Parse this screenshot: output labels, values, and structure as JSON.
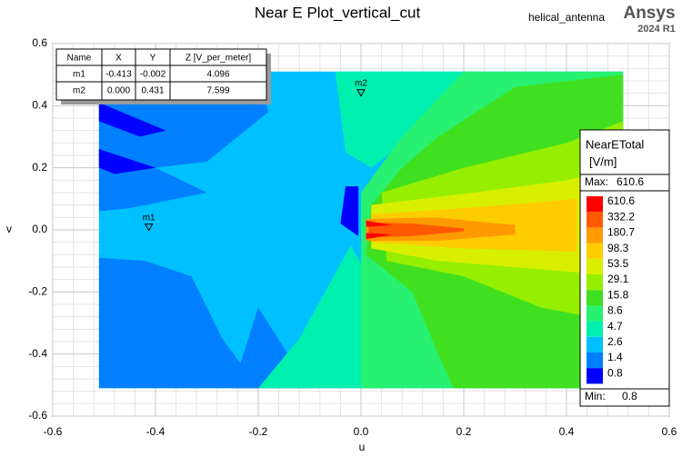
{
  "chart_data": {
    "type": "contour",
    "title": "Near E Plot_vertical_cut",
    "project": "helical_antenna",
    "brand": "Ansys",
    "version": "2024 R1",
    "x_label": "u",
    "y_label": "v",
    "xlim": [
      -0.6,
      0.6
    ],
    "ylim": [
      -0.6,
      0.6
    ],
    "xticks": [
      -0.6,
      -0.4,
      -0.2,
      {
        "value": 0,
        "label": "0.0"
      },
      0.2,
      0.4,
      0.6
    ],
    "yticks": [
      -0.6,
      -0.4,
      -0.2,
      {
        "value": 0,
        "label": "0.0"
      },
      0.2,
      0.4,
      0.6
    ],
    "grid": true,
    "legend": {
      "title": "NearETotal",
      "unit": "[V/m]",
      "max_label": "Max:",
      "max": 610.6,
      "min_label": "Min:",
      "min": 0.8,
      "levels": [
        610.6,
        332.2,
        180.7,
        98.3,
        53.5,
        29.1,
        15.8,
        8.6,
        4.7,
        2.6,
        1.4,
        0.8
      ],
      "colors": [
        "#ff0000",
        "#ff5a00",
        "#ff9a00",
        "#ffcc00",
        "#d8f000",
        "#96ee00",
        "#40e020",
        "#28f070",
        "#00f0b0",
        "#00c0ff",
        "#0080ff",
        "#0000ff"
      ]
    },
    "marker_table": {
      "headers": [
        "Name",
        "X",
        "Y",
        "Z [V_per_meter]"
      ],
      "markers": [
        {
          "name": "m1",
          "x": -0.413,
          "y": -0.002,
          "z": 4.096
        },
        {
          "name": "m2",
          "x": {
            "value": 0,
            "label": "0.000"
          },
          "y": 0.431,
          "z": 7.599
        }
      ]
    }
  }
}
